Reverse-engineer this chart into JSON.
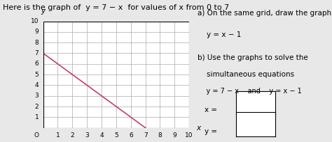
{
  "title_part1": "Here is the graph of  ",
  "title_eq": "y",
  "title_part2": " = 7 − x  for values of ",
  "title_x": "x",
  "title_part3": " from 0 to 7",
  "line1_x": [
    0,
    7
  ],
  "line1_y": [
    7,
    0
  ],
  "line1_color": "#c0406a",
  "grid_color": "#aaaaaa",
  "grid_inner_color": "#ffffff",
  "axis_color": "#000000",
  "background_color": "#e8e8e8",
  "xlim": [
    0,
    10
  ],
  "ylim": [
    0,
    10
  ],
  "xticks": [
    1,
    2,
    3,
    4,
    5,
    6,
    7,
    8,
    9,
    10
  ],
  "yticks": [
    1,
    2,
    3,
    4,
    5,
    6,
    7,
    8,
    9,
    10
  ],
  "xlabel": "x",
  "ylabel": "y",
  "origin_label": "O",
  "text_a": "a) On the same grid, draw the graph of",
  "text_a2": "    y = x − 1",
  "text_b": "b) Use the graphs to solve the",
  "text_b2": "    simultaneous equations",
  "text_b3": "    y = 7 − x    and    y = x − 1",
  "text_x": "x =",
  "text_y": "y =",
  "font_size_title": 8,
  "font_size_right": 7.5,
  "font_size_axis": 6.5
}
